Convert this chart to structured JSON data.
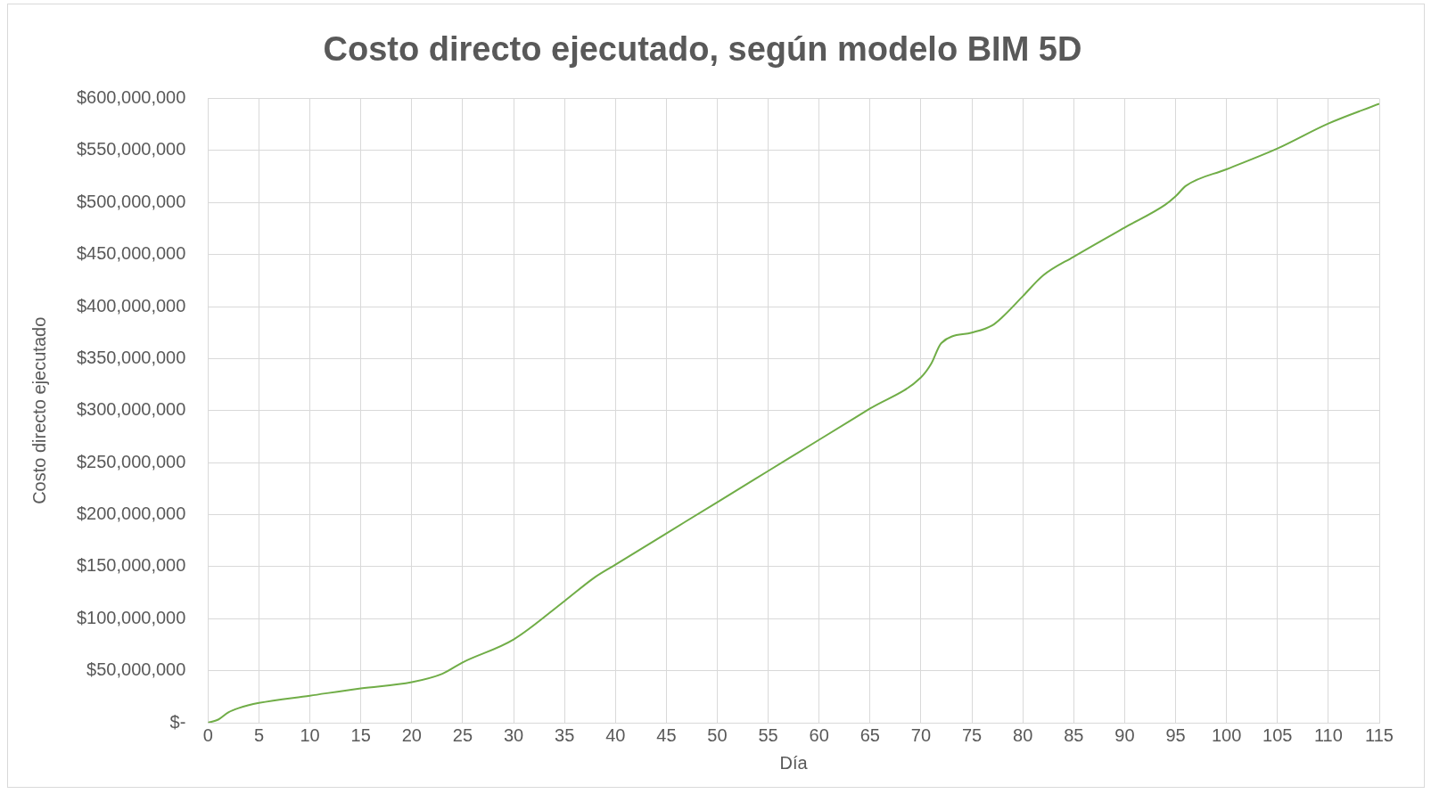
{
  "chart_data": {
    "type": "line",
    "title": "Costo directo ejecutado, según modelo BIM 5D",
    "xlabel": "Día",
    "ylabel": "Costo directo ejecutado",
    "x": [
      0,
      1,
      2,
      3,
      5,
      10,
      15,
      20,
      23,
      25,
      30,
      35,
      38,
      40,
      45,
      50,
      55,
      60,
      65,
      70,
      71,
      72,
      75,
      77,
      78,
      80,
      82,
      85,
      90,
      94,
      95,
      96,
      100,
      105,
      110,
      115
    ],
    "series": [
      {
        "color": "#70ad47",
        "values": [
          0,
          3000000,
          10000000,
          14000000,
          19000000,
          26000000,
          33000000,
          39000000,
          47000000,
          58000000,
          80000000,
          117000000,
          140000000,
          152000000,
          182000000,
          212000000,
          242000000,
          272000000,
          302000000,
          332000000,
          345000000,
          365000000,
          375000000,
          382000000,
          390000000,
          410000000,
          430000000,
          448000000,
          476000000,
          498000000,
          506000000,
          516000000,
          532000000,
          552000000,
          576000000,
          595000000
        ]
      }
    ],
    "xlim": [
      0,
      115
    ],
    "xticks": [
      0,
      5,
      10,
      15,
      20,
      25,
      30,
      35,
      40,
      45,
      50,
      55,
      60,
      65,
      70,
      75,
      80,
      85,
      90,
      95,
      100,
      105,
      110,
      115
    ],
    "ylim": [
      0,
      600000000
    ],
    "yticks": [
      {
        "value": 0,
        "label": "$-"
      },
      {
        "value": 50000000,
        "label": "$50,000,000"
      },
      {
        "value": 100000000,
        "label": "$100,000,000"
      },
      {
        "value": 150000000,
        "label": "$150,000,000"
      },
      {
        "value": 200000000,
        "label": "$200,000,000"
      },
      {
        "value": 250000000,
        "label": "$250,000,000"
      },
      {
        "value": 300000000,
        "label": "$300,000,000"
      },
      {
        "value": 350000000,
        "label": "$350,000,000"
      },
      {
        "value": 400000000,
        "label": "$400,000,000"
      },
      {
        "value": 450000000,
        "label": "$450,000,000"
      },
      {
        "value": 500000000,
        "label": "$500,000,000"
      },
      {
        "value": 550000000,
        "label": "$550,000,000"
      },
      {
        "value": 600000000,
        "label": "$600,000,000"
      }
    ],
    "grid": true,
    "legend": false,
    "marker": "none",
    "line_style": "solid"
  }
}
